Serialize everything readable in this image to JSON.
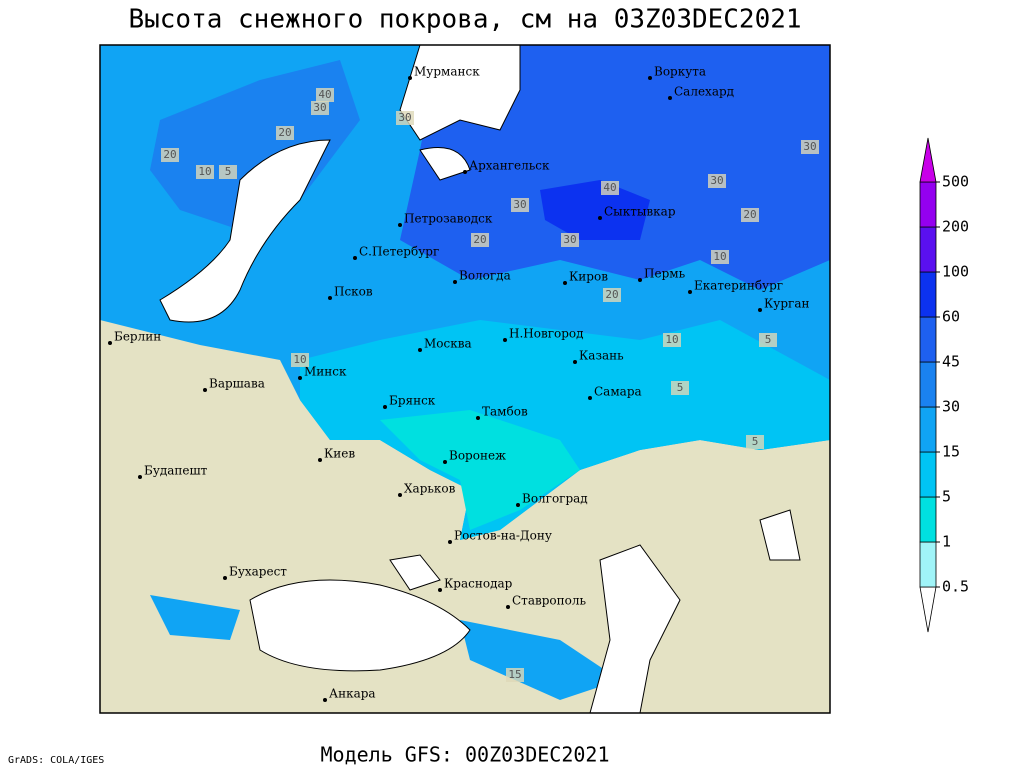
{
  "header": {
    "title": "Высота снежного покрова, см на 03Z03DEC2021"
  },
  "footer": {
    "model": "Модель GFS: 00Z03DEC2021",
    "credit": "GrADS: COLA/IGES"
  },
  "map": {
    "cities": [
      "Мурманск",
      "Воркута",
      "Салехард",
      "Архангельск",
      "Петрозаводск",
      "Сыктывкар",
      "С.Петербург",
      "Вологда",
      "Киров",
      "Пермь",
      "Екатеринбург",
      "Курган",
      "Псков",
      "Берлин",
      "Н.Новгород",
      "Москва",
      "Казань",
      "Минск",
      "Варшава",
      "Самара",
      "Брянск",
      "Тамбов",
      "Киев",
      "Воронеж",
      "Будапешт",
      "Харьков",
      "Волгоград",
      "Ростов-на-Дону",
      "Бухарест",
      "Краснодар",
      "Ставрополь",
      "Анкара"
    ],
    "contour_labels": [
      "40",
      "30",
      "30",
      "20",
      "20",
      "20",
      "10",
      "5",
      "30",
      "30",
      "40",
      "30",
      "20",
      "10",
      "10",
      "5",
      "5",
      "10",
      "5",
      "15",
      "30",
      "20"
    ]
  },
  "legend": {
    "levels": [
      0.5,
      1,
      5,
      15,
      30,
      45,
      60,
      100,
      200,
      500
    ],
    "colors": [
      "#ffffff",
      "#a0f4f8",
      "#00e0e0",
      "#00c4f4",
      "#10a4f4",
      "#1a82f0",
      "#1e60f0",
      "#0c32f0",
      "#5a10f0",
      "#9400f0",
      "#c800e8"
    ]
  }
}
